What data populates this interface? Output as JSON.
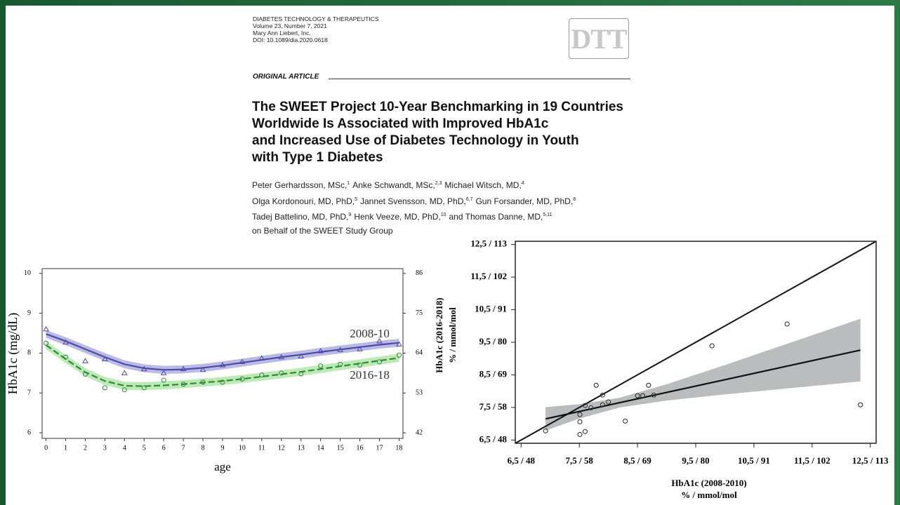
{
  "document": {
    "journal": [
      "DIABETES TECHNOLOGY & THERAPEUTICS",
      "Volume 23, Number 7, 2021",
      "Mary Ann Liebert, Inc.",
      "DOI: 10.1089/dia.2020.0618"
    ],
    "logo": "DTT",
    "section": "ORIGINAL ARTICLE",
    "title": [
      "The SWEET Project 10-Year Benchmarking in 19 Countries",
      "Worldwide Is Associated with Improved HbA1c",
      "and Increased Use of Diabetes Technology in Youth",
      "with Type 1 Diabetes"
    ],
    "authors": [
      [
        {
          "text": "Peter Gerhardsson, MSc,",
          "sup": "1"
        },
        {
          "text": "Anke Schwandt, MSc,",
          "sup": "2,3"
        },
        {
          "text": "Michael Witsch, MD,",
          "sup": "4"
        }
      ],
      [
        {
          "text": "Olga Kordonouri, MD, PhD,",
          "sup": "5"
        },
        {
          "text": "Jannet Svensson, MD, PhD,",
          "sup": "6,7"
        },
        {
          "text": "Gun Forsander, MD, PhD,",
          "sup": "8"
        }
      ],
      [
        {
          "text": "Tadej Battelino, MD, PhD,",
          "sup": "9"
        },
        {
          "text": "Henk Veeze, MD, PhD,",
          "sup": "10"
        },
        {
          "text": "and Thomas Danne, MD,",
          "sup": "5,11"
        }
      ],
      [
        {
          "text": "on Behalf of the SWEET Study Group"
        }
      ]
    ]
  },
  "chart_data": [
    {
      "type": "line",
      "y_label": "HbA1c (mg/dL)",
      "x_label": "age",
      "x": [
        0,
        1,
        2,
        3,
        4,
        5,
        6,
        7,
        8,
        9,
        10,
        11,
        12,
        13,
        14,
        15,
        16,
        17,
        18
      ],
      "xlim": [
        -0.2,
        18.2
      ],
      "xticks": [
        0,
        1,
        2,
        3,
        4,
        5,
        6,
        7,
        8,
        9,
        10,
        11,
        12,
        13,
        14,
        15,
        16,
        17,
        18
      ],
      "ylim": [
        5.86,
        10.12
      ],
      "yticks": [
        6,
        7,
        8,
        9,
        10
      ],
      "y2lim": [
        40.46,
        87.32
      ],
      "y2ticks": [
        42,
        53,
        64,
        75,
        86
      ],
      "series": [
        {
          "name": "2008-10",
          "color": "#4b4ba8",
          "band_color": "#a9a9e0",
          "marker": "triangle",
          "dashed": false,
          "ci": 0.1,
          "values": [
            8.6,
            8.27,
            7.8,
            7.85,
            7.5,
            7.6,
            7.5,
            7.6,
            7.58,
            7.7,
            7.78,
            7.87,
            7.9,
            7.92,
            8.05,
            8.08,
            8.1,
            8.3,
            8.22
          ],
          "fit": [
            8.48,
            8.3,
            8.1,
            7.9,
            7.72,
            7.62,
            7.58,
            7.59,
            7.63,
            7.69,
            7.76,
            7.83,
            7.9,
            7.96,
            8.03,
            8.09,
            8.15,
            8.21,
            8.26
          ]
        },
        {
          "name": "2016-18",
          "color": "#2f8a3a",
          "band_color": "#a8e6a0",
          "marker": "circle",
          "dashed": true,
          "ci": 0.1,
          "values": [
            8.25,
            7.9,
            7.47,
            7.13,
            7.08,
            7.13,
            7.32,
            7.22,
            7.27,
            7.27,
            7.35,
            7.45,
            7.5,
            7.48,
            7.68,
            7.72,
            7.7,
            7.78,
            7.95
          ],
          "fit": [
            8.2,
            7.85,
            7.52,
            7.3,
            7.18,
            7.17,
            7.19,
            7.22,
            7.26,
            7.3,
            7.35,
            7.41,
            7.47,
            7.53,
            7.6,
            7.67,
            7.74,
            7.81,
            7.88
          ]
        }
      ]
    },
    {
      "type": "scatter",
      "x_label": [
        "HbA1c (2008-2010)",
        "% / mmol/mol"
      ],
      "y_label": [
        "HbA1c (2016-2018)",
        "% / mmol/mol"
      ],
      "xlim": [
        6.4,
        12.6
      ],
      "ylim": [
        6.4,
        12.6
      ],
      "xticks": [
        {
          "value": 6.5,
          "label": "6,5 / 48"
        },
        {
          "value": 7.5,
          "label": "7,5 / 58"
        },
        {
          "value": 8.5,
          "label": "8,5 / 69"
        },
        {
          "value": 9.5,
          "label": "9,5 / 80"
        },
        {
          "value": 10.5,
          "label": "10,5 / 91"
        },
        {
          "value": 11.5,
          "label": "11,5 / 102"
        },
        {
          "value": 12.5,
          "label": "12,5 / 113"
        }
      ],
      "yticks": [
        {
          "value": 6.5,
          "label": "6,5 / 48"
        },
        {
          "value": 7.5,
          "label": "7,5 / 58"
        },
        {
          "value": 8.5,
          "label": "8,5 / 69"
        },
        {
          "value": 9.5,
          "label": "9,5 / 80"
        },
        {
          "value": 10.5,
          "label": "10,5 / 91"
        },
        {
          "value": 11.5,
          "label": "11,5 / 102"
        },
        {
          "value": 12.5,
          "label": "12,5 / 113"
        }
      ],
      "identity_line": true,
      "color": "#111111",
      "band_color": "#b9bdbd",
      "points": {
        "x": [
          6.92,
          7.51,
          7.6,
          7.51,
          7.51,
          7.6,
          7.7,
          7.79,
          7.9,
          7.9,
          8.0,
          8.29,
          8.5,
          8.59,
          8.69,
          8.78,
          9.78,
          11.07,
          12.33
        ],
        "y": [
          6.78,
          6.67,
          6.76,
          7.06,
          7.28,
          7.56,
          7.49,
          8.18,
          7.88,
          7.58,
          7.67,
          7.08,
          7.86,
          7.86,
          8.18,
          7.88,
          9.39,
          10.06,
          7.58
        ]
      },
      "fit": {
        "x": [
          6.92,
          12.33
        ],
        "y": [
          7.15,
          9.26
        ]
      },
      "band": {
        "x": [
          6.92,
          7.5,
          8.2,
          9,
          10,
          11,
          12.33
        ],
        "lower": [
          6.79,
          7.16,
          7.5,
          7.71,
          7.9,
          8.07,
          8.3
        ],
        "upper": [
          7.51,
          7.6,
          7.8,
          8.21,
          8.8,
          9.41,
          10.22
        ]
      }
    }
  ]
}
